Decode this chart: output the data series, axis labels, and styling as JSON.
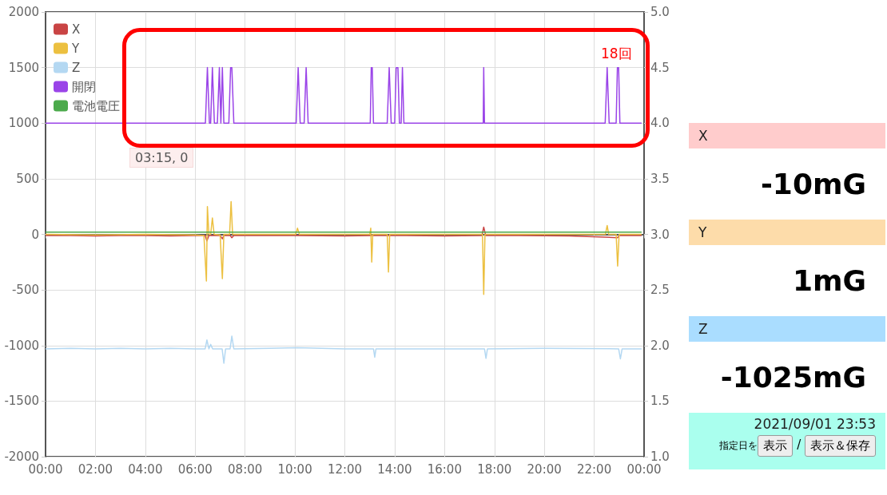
{
  "chart_data": [
    {
      "type": "line",
      "xlim": [
        0,
        24
      ],
      "xticks": [
        {
          "value": 0,
          "label": "00:00"
        },
        {
          "value": 2,
          "label": "02:00"
        },
        {
          "value": 4,
          "label": "04:00"
        },
        {
          "value": 6,
          "label": "06:00"
        },
        {
          "value": 8,
          "label": "08:00"
        },
        {
          "value": 10,
          "label": "10:00"
        },
        {
          "value": 12,
          "label": "12:00"
        },
        {
          "value": 14,
          "label": "14:00"
        },
        {
          "value": 16,
          "label": "16:00"
        },
        {
          "value": 18,
          "label": "18:00"
        },
        {
          "value": 20,
          "label": "20:00"
        },
        {
          "value": 22,
          "label": "22:00"
        },
        {
          "value": 24,
          "label": "00:00"
        }
      ],
      "ylim": [
        -2000,
        2000
      ],
      "yticks": [
        -2000,
        -1500,
        -1000,
        -500,
        0,
        500,
        1000,
        1500,
        2000
      ],
      "y2lim": [
        1,
        5
      ],
      "y2ticks": [
        {
          "value": 1,
          "label": "1.0"
        },
        1.5,
        {
          "value": 2,
          "label": "2.0"
        },
        2.5,
        {
          "value": 3,
          "label": "3.0"
        },
        3.5,
        {
          "value": 4,
          "label": "4.0"
        },
        4.5,
        {
          "value": 5,
          "label": "5.0"
        }
      ],
      "grid": true,
      "legend": "top left",
      "marker": "none",
      "annotations": [
        "18回",
        "03:15, 0"
      ],
      "series": [
        {
          "name": "X",
          "color": "#c94444",
          "x": [
            0,
            1,
            2,
            3,
            4,
            5,
            6,
            6.4,
            6.47,
            6.55,
            7.0,
            7.09,
            7.15,
            7.4,
            7.47,
            7.55,
            9,
            10.1,
            12,
            13.08,
            14,
            16,
            17.5,
            17.57,
            17.65,
            19,
            21,
            22.94,
            23,
            23.9
          ],
          "values": [
            -10,
            -10,
            -15,
            -10,
            -10,
            -15,
            -10,
            -10,
            -60,
            -10,
            -10,
            -40,
            -10,
            -10,
            -30,
            -10,
            -10,
            -10,
            -15,
            -10,
            -10,
            -15,
            -10,
            65,
            -10,
            -10,
            -15,
            -30,
            -10,
            -10
          ]
        },
        {
          "name": "Y",
          "color": "#ecc040",
          "x": [
            0,
            2,
            4,
            6,
            6.35,
            6.45,
            6.49,
            6.55,
            6.62,
            6.69,
            6.76,
            7.0,
            7.09,
            7.15,
            7.38,
            7.44,
            7.5,
            10.03,
            10.1,
            10.18,
            13.0,
            13.04,
            13.08,
            13.12,
            13.7,
            13.75,
            13.8,
            17.52,
            17.57,
            17.62,
            22.45,
            22.52,
            22.58,
            22.88,
            22.94,
            23.0,
            23.9
          ],
          "values": [
            0,
            -5,
            0,
            -5,
            -10,
            -420,
            250,
            0,
            0,
            147,
            0,
            -5,
            -398,
            0,
            0,
            295,
            0,
            0,
            55,
            0,
            0,
            55,
            -250,
            0,
            0,
            -340,
            0,
            0,
            -540,
            0,
            0,
            79,
            0,
            0,
            -286,
            0,
            0
          ]
        },
        {
          "name": "Z",
          "color": "#b4d8f2",
          "x": [
            0,
            1,
            2,
            3,
            4,
            5,
            6,
            6.4,
            6.47,
            6.55,
            6.62,
            6.7,
            7.08,
            7.15,
            7.22,
            7.4,
            7.47,
            7.55,
            9,
            10.1,
            12,
            13.15,
            13.2,
            13.25,
            15,
            17.6,
            17.66,
            17.72,
            20,
            22.98,
            23.05,
            23.12,
            23.9
          ],
          "values": [
            -1030,
            -1025,
            -1030,
            -1025,
            -1030,
            -1025,
            -1030,
            -1030,
            -950,
            -1030,
            -990,
            -1030,
            -1030,
            -1160,
            -1030,
            -1030,
            -915,
            -1030,
            -1025,
            -1020,
            -1030,
            -1030,
            -1105,
            -1030,
            -1030,
            -1030,
            -1115,
            -1030,
            -1025,
            -1030,
            -1120,
            -1030,
            -1030
          ]
        },
        {
          "name": "開閉",
          "color": "#9a44e8",
          "x": [
            0,
            6.41,
            6.49,
            6.57,
            6.62,
            6.69,
            6.77,
            6.89,
            6.97,
            7.03,
            7.09,
            7.15,
            7.35,
            7.42,
            7.47,
            7.55,
            10.05,
            10.13,
            10.21,
            10.37,
            10.45,
            10.53,
            13.02,
            13.06,
            13.1,
            13.15,
            13.7,
            13.78,
            13.86,
            14.0,
            14.06,
            14.13,
            14.19,
            14.26,
            14.31,
            14.37,
            17.55,
            17.57,
            17.6,
            22.44,
            22.52,
            22.6,
            22.88,
            22.93,
            22.98,
            23.03,
            23.9
          ],
          "values": [
            1000,
            1000,
            1500,
            1000,
            1000,
            1500,
            1000,
            1000,
            1500,
            1000,
            1500,
            1000,
            1000,
            1500,
            1500,
            1000,
            1000,
            1500,
            1000,
            1000,
            1500,
            1000,
            1000,
            1500,
            1500,
            1000,
            1000,
            1500,
            1000,
            1000,
            1500,
            1500,
            1000,
            1000,
            1500,
            1000,
            1000,
            1500,
            1000,
            1000,
            1500,
            1000,
            1000,
            1500,
            1500,
            1000,
            1000
          ]
        },
        {
          "name": "電池電圧",
          "color": "#4caa4c",
          "axis": "y2",
          "x": [
            0,
            23.9
          ],
          "values": [
            3.02,
            3.02
          ]
        }
      ]
    },
    {
      "type": "other",
      "categories": [
        "X",
        "Y",
        "Z"
      ],
      "value_labels": [
        "-10mG",
        "1mG",
        "-1025mG"
      ],
      "colors": [
        "#ffcccc",
        "#fddcaa",
        "#aaddff"
      ],
      "annotations": [
        "2021/09/01 23:53",
        "指定日を",
        "表示",
        "/",
        "表示＆保存"
      ]
    }
  ]
}
